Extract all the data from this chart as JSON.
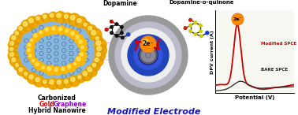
{
  "title": "Modified Electrode",
  "title_color": "#1111cc",
  "title_fontsize": 8,
  "bg_color": "#ffffff",
  "label_carbonized": "Carbonized",
  "label_gold": "Gold",
  "label_slash": " / ",
  "label_graphene": "Graphene",
  "label_hybrid": "Hybrid Nanowire",
  "label_gold_color": "#ff0000",
  "label_graphene_color": "#8800cc",
  "label_carbonized_color": "#000000",
  "label_hybrid_color": "#000000",
  "dopamine_label": "Dopamine",
  "quinone_label": "Dopamine-o-quinone",
  "label_dopamine_color": "#000000",
  "graph_xlabel": "Potential (V)",
  "graph_ylabel": "DPV current (A)",
  "graph_modified_label": "Modified SPCE",
  "graph_bare_label": "BARE SPCE",
  "graph_modified_color": "#cc0000",
  "graph_bare_color": "#222222",
  "graph_2e_label": "2e⁻",
  "graph_bg": "#f8f8f2",
  "electrode_2e_label": "2e⁻",
  "nanofiber_gold_color": "#FFB800",
  "nanofiber_core_color": "#7aaedd",
  "ring_colors": [
    "#999999",
    "#bbbbcc",
    "#eeeeee",
    "#2244bb",
    "#3355dd",
    "#111188"
  ],
  "ring_radii": [
    50,
    42,
    34,
    26,
    18,
    12
  ],
  "center_color": "#666677",
  "orange_ball_color": "#FF8800",
  "arrow_color": "#cc0000",
  "pink_line_color": "#ff99cc"
}
